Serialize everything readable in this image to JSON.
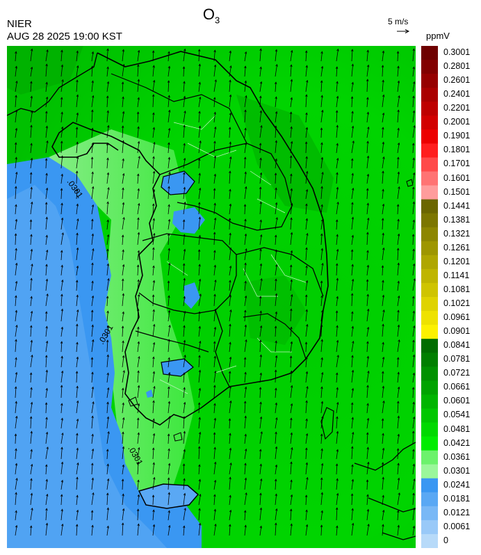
{
  "header": {
    "title_main": "O",
    "title_sub": "3",
    "agency": "NIER",
    "datetime": "AUG 28 2025 19:00 KST"
  },
  "wind": {
    "reference_label": "5 m/s",
    "direction": "south-southwest to north-northeast"
  },
  "contour_labels": [
    ".0301",
    ".0301",
    ".0301"
  ],
  "colorbar": {
    "unit": "ppmV",
    "labels": [
      "0.3001",
      "0.2801",
      "0.2601",
      "0.2401",
      "0.2201",
      "0.2001",
      "0.1901",
      "0.1801",
      "0.1701",
      "0.1601",
      "0.1501",
      "0.1441",
      "0.1381",
      "0.1321",
      "0.1261",
      "0.1201",
      "0.1141",
      "0.1081",
      "0.1021",
      "0.0961",
      "0.0901",
      "0.0841",
      "0.0781",
      "0.0721",
      "0.0661",
      "0.0601",
      "0.0541",
      "0.0481",
      "0.0421",
      "0.0361",
      "0.0301",
      "0.0241",
      "0.0181",
      "0.0121",
      "0.0061",
      "0"
    ],
    "colors": [
      "#6e0000",
      "#820000",
      "#960000",
      "#aa0000",
      "#be0000",
      "#d20000",
      "#ec0000",
      "#ff1e1e",
      "#ff4a4a",
      "#ff7373",
      "#ff9c9c",
      "#6b6600",
      "#7c7600",
      "#8d8600",
      "#9e9600",
      "#afa600",
      "#bfb500",
      "#cfc400",
      "#dfd300",
      "#eee200",
      "#fcf100",
      "#006d00",
      "#007f00",
      "#009100",
      "#00a300",
      "#00b500",
      "#00c700",
      "#00d900",
      "#00ec00",
      "#6cf26c",
      "#9bf79b",
      "#3a97f2",
      "#5aa8f4",
      "#79b8f6",
      "#99c9f8",
      "#b7daf9"
    ]
  }
}
